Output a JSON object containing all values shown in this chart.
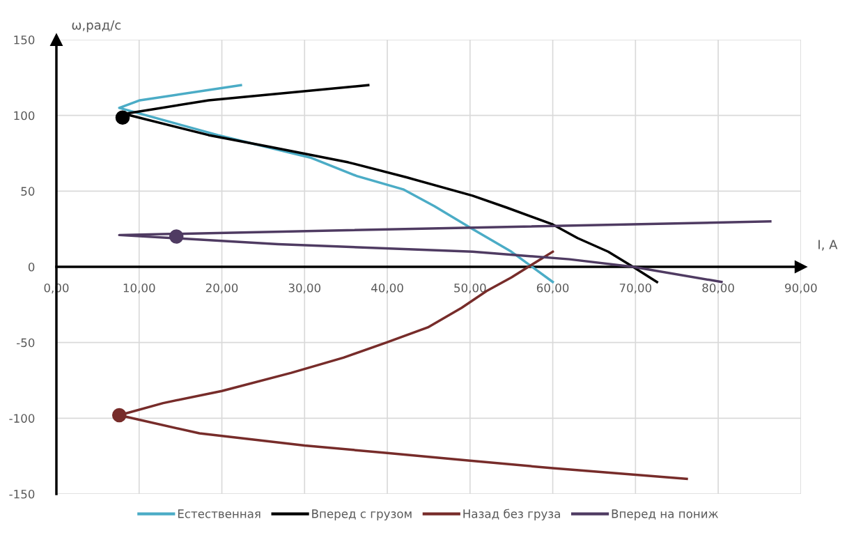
{
  "chart_data": {
    "type": "line",
    "xlabel": "I, A",
    "ylabel": "ω,рад/с",
    "xlim": [
      0,
      90
    ],
    "ylim": [
      -150,
      150
    ],
    "xticks": [
      {
        "value": 0,
        "label": "0,00"
      },
      {
        "value": 10,
        "label": "10,00"
      },
      {
        "value": 20,
        "label": "20,00"
      },
      {
        "value": 30,
        "label": "30,00"
      },
      {
        "value": 40,
        "label": "40,00"
      },
      {
        "value": 50,
        "label": "50,00"
      },
      {
        "value": 60,
        "label": "60,00"
      },
      {
        "value": 70,
        "label": "70,00"
      },
      {
        "value": 80,
        "label": "80,00"
      },
      {
        "value": 90,
        "label": "90,00"
      }
    ],
    "yticks": [
      -150,
      -100,
      -50,
      0,
      50,
      100,
      150
    ],
    "grid": true,
    "legend": "bottom",
    "marker": "none",
    "line_style": "solid",
    "series": [
      {
        "name": "Естественная",
        "color": "#4bacc6",
        "x": [
          22.3,
          10.1,
          7.6,
          19.5,
          30.8,
          36.3,
          42,
          45.7,
          50.3,
          55,
          60
        ],
        "values": [
          120,
          110,
          105,
          87,
          72,
          60,
          51,
          40,
          25,
          10,
          -10
        ]
      },
      {
        "name": "Вперед с грузом",
        "color": "#000000",
        "x": [
          37.7,
          18.4,
          8.2,
          18.4,
          26,
          35.3,
          42.4,
          50.3,
          54.5,
          60,
          63,
          66.7,
          69.7,
          72.6
        ],
        "values": [
          120,
          110,
          101,
          87,
          79,
          69,
          59,
          47,
          39,
          28,
          19,
          10,
          0,
          -10
        ]
      },
      {
        "name": "Назад без груза",
        "color": "#772c2a",
        "x": [
          60,
          55,
          52,
          49,
          44.9,
          39.9,
          34.7,
          28.4,
          20,
          12.9,
          7.6,
          17.3,
          30,
          40,
          50,
          60,
          76.2
        ],
        "values": [
          10,
          -7,
          -16,
          -27,
          -40,
          -50,
          -60,
          -70,
          -82,
          -90,
          -98,
          -110,
          -118,
          -123,
          -128,
          -133,
          -140
        ]
      },
      {
        "name": "Вперед на пониж",
        "color": "#4f3b62",
        "x": [
          86.3,
          7.6,
          26.8,
          50.3,
          62,
          69.7,
          80.4
        ],
        "values": [
          30,
          21,
          15,
          10,
          5,
          0,
          -10
        ]
      },
      {
        "type": "scatter",
        "marker": "circle",
        "color": "#000000",
        "x": [
          8.0
        ],
        "values": [
          98.6
        ]
      },
      {
        "type": "scatter",
        "marker": "circle",
        "color": "#772c2a",
        "x": [
          7.6
        ],
        "values": [
          -98
        ]
      },
      {
        "type": "scatter",
        "marker": "circle",
        "color": "#4f3b62",
        "x": [
          14.5
        ],
        "values": [
          20
        ]
      }
    ]
  }
}
